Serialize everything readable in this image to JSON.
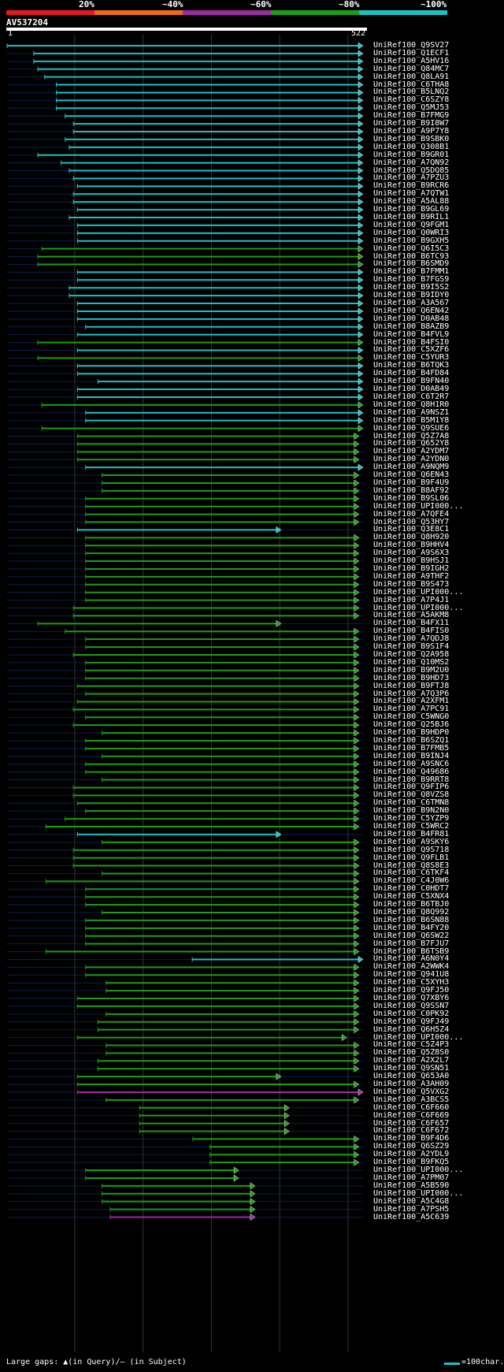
{
  "header": {
    "legend": [
      "20%",
      "~40%",
      "~60%",
      "~80%",
      "~100%"
    ],
    "band_colors": [
      "#e41a1c",
      "#ed6b12",
      "#9c2aa0",
      "#1b9e14",
      "#1ac2c2"
    ]
  },
  "query": {
    "name": "AV537204",
    "start": "1",
    "end": "522"
  },
  "footer": {
    "gaps": "Large gaps: ▲(in Query)/– (in Subject)",
    "scale": "=100char."
  },
  "chart_data": {
    "type": "alignment-overview",
    "query_length": 522,
    "hits": [
      {
        "name": "UniRef100_Q9SV27",
        "s": 1,
        "e": 522,
        "c": "c"
      },
      {
        "name": "UniRef100_Q1ECF1",
        "s": 40,
        "e": 522,
        "c": "c"
      },
      {
        "name": "UniRef100_A5HV16",
        "s": 40,
        "e": 522,
        "c": "c"
      },
      {
        "name": "UniRef100_Q84MC7",
        "s": 46,
        "e": 522,
        "c": "c"
      },
      {
        "name": "UniRef100_Q8LA91",
        "s": 56,
        "e": 522,
        "c": "c"
      },
      {
        "name": "UniRef100_C6THA8",
        "s": 73,
        "e": 522,
        "c": "c"
      },
      {
        "name": "UniRef100_B5LNQ2",
        "s": 73,
        "e": 522,
        "c": "c"
      },
      {
        "name": "UniRef100_C6SZY8",
        "s": 73,
        "e": 522,
        "c": "c"
      },
      {
        "name": "UniRef100_Q5MJ53",
        "s": 73,
        "e": 522,
        "c": "c"
      },
      {
        "name": "UniRef100_B7FMG9",
        "s": 86,
        "e": 522,
        "c": "c"
      },
      {
        "name": "UniRef100_B9I8W7",
        "s": 98,
        "e": 522,
        "c": "c"
      },
      {
        "name": "UniRef100_A9P7Y8",
        "s": 98,
        "e": 522,
        "c": "c"
      },
      {
        "name": "UniRef100_B9SBK0",
        "s": 86,
        "e": 522,
        "c": "c"
      },
      {
        "name": "UniRef100_Q308B1",
        "s": 92,
        "e": 522,
        "c": "c"
      },
      {
        "name": "UniRef100_B9GR01",
        "s": 46,
        "e": 522,
        "c": "c"
      },
      {
        "name": "UniRef100_A7QN92",
        "s": 80,
        "e": 522,
        "c": "c"
      },
      {
        "name": "UniRef100_Q5DQ85",
        "s": 92,
        "e": 522,
        "c": "c"
      },
      {
        "name": "UniRef100_A7PZU3",
        "s": 98,
        "e": 522,
        "c": "c"
      },
      {
        "name": "UniRef100_B9RCR6",
        "s": 104,
        "e": 522,
        "c": "c"
      },
      {
        "name": "UniRef100_A7QTW1",
        "s": 98,
        "e": 522,
        "c": "c"
      },
      {
        "name": "UniRef100_A5AL88",
        "s": 98,
        "e": 522,
        "c": "c"
      },
      {
        "name": "UniRef100_B9GL69",
        "s": 104,
        "e": 522,
        "c": "c"
      },
      {
        "name": "UniRef100_B9RIL1",
        "s": 92,
        "e": 522,
        "c": "c"
      },
      {
        "name": "UniRef100_Q9FGM1",
        "s": 104,
        "e": 522,
        "c": "c"
      },
      {
        "name": "UniRef100_Q0WRI3",
        "s": 104,
        "e": 522,
        "c": "c"
      },
      {
        "name": "UniRef100_B9GXH5",
        "s": 104,
        "e": 522,
        "c": "c"
      },
      {
        "name": "UniRef100_Q6I5C3",
        "s": 52,
        "e": 522,
        "c": "g"
      },
      {
        "name": "UniRef100_B6TC93",
        "s": 46,
        "e": 522,
        "c": "g"
      },
      {
        "name": "UniRef100_B6SMD9",
        "s": 46,
        "e": 522,
        "c": "g"
      },
      {
        "name": "UniRef100_B7FMM1",
        "s": 104,
        "e": 522,
        "c": "c"
      },
      {
        "name": "UniRef100_B7FGS9",
        "s": 104,
        "e": 522,
        "c": "c"
      },
      {
        "name": "UniRef100_B9I5S2",
        "s": 92,
        "e": 522,
        "c": "c"
      },
      {
        "name": "UniRef100_B9IDY0",
        "s": 92,
        "e": 522,
        "c": "c"
      },
      {
        "name": "UniRef100_A3A567",
        "s": 104,
        "e": 522,
        "c": "c"
      },
      {
        "name": "UniRef100_Q6EN42",
        "s": 104,
        "e": 522,
        "c": "c"
      },
      {
        "name": "UniRef100_D0AB48",
        "s": 104,
        "e": 522,
        "c": "c"
      },
      {
        "name": "UniRef100_B8AZB9",
        "s": 116,
        "e": 522,
        "c": "c"
      },
      {
        "name": "UniRef100_B4FVL9",
        "s": 104,
        "e": 522,
        "c": "c"
      },
      {
        "name": "UniRef100_B4FSI0",
        "s": 46,
        "e": 522,
        "c": "g"
      },
      {
        "name": "UniRef100_C5XZF6",
        "s": 104,
        "e": 522,
        "c": "c"
      },
      {
        "name": "UniRef100_C5YUR3",
        "s": 46,
        "e": 522,
        "c": "g"
      },
      {
        "name": "UniRef100_B6TQK3",
        "s": 104,
        "e": 522,
        "c": "c"
      },
      {
        "name": "UniRef100_B4FD84",
        "s": 104,
        "e": 522,
        "c": "c"
      },
      {
        "name": "UniRef100_B9FN40",
        "s": 134,
        "e": 522,
        "c": "c"
      },
      {
        "name": "UniRef100_D0AB49",
        "s": 104,
        "e": 522,
        "c": "c"
      },
      {
        "name": "UniRef100_C6T2R7",
        "s": 104,
        "e": 522,
        "c": "c"
      },
      {
        "name": "UniRef100_Q8H1R0",
        "s": 52,
        "e": 522,
        "c": "g"
      },
      {
        "name": "UniRef100_A9NSZ1",
        "s": 116,
        "e": 522,
        "c": "c"
      },
      {
        "name": "UniRef100_B5M1Y8",
        "s": 116,
        "e": 522,
        "c": "c"
      },
      {
        "name": "UniRef100_Q9SUE6",
        "s": 52,
        "e": 522,
        "c": "g"
      },
      {
        "name": "UniRef100_Q5Z7A8",
        "s": 104,
        "e": 516,
        "c": "g"
      },
      {
        "name": "UniRef100_Q652Y8",
        "s": 104,
        "e": 516,
        "c": "g"
      },
      {
        "name": "UniRef100_A2YDM7",
        "s": 104,
        "e": 516,
        "c": "g"
      },
      {
        "name": "UniRef100_A2YDN0",
        "s": 104,
        "e": 516,
        "c": "g"
      },
      {
        "name": "UniRef100_A9NQM9",
        "s": 116,
        "e": 522,
        "c": "c"
      },
      {
        "name": "UniRef100_Q6EN43",
        "s": 140,
        "e": 516,
        "c": "g"
      },
      {
        "name": "UniRef100_B9F4U9",
        "s": 140,
        "e": 516,
        "c": "g"
      },
      {
        "name": "UniRef100_B8AF92",
        "s": 140,
        "e": 516,
        "c": "g"
      },
      {
        "name": "UniRef100_B9SL06",
        "s": 116,
        "e": 516,
        "c": "g"
      },
      {
        "name": "UniRef100_UPI000...",
        "s": 116,
        "e": 516,
        "c": "g"
      },
      {
        "name": "UniRef100_A7QFE4",
        "s": 116,
        "e": 516,
        "c": "g"
      },
      {
        "name": "UniRef100_Q53HY7",
        "s": 116,
        "e": 516,
        "c": "g"
      },
      {
        "name": "UniRef100_Q3E8C1",
        "s": 104,
        "e": 402,
        "c": "c"
      },
      {
        "name": "UniRef100_Q8H920",
        "s": 116,
        "e": 516,
        "c": "g"
      },
      {
        "name": "UniRef100_B9HHV4",
        "s": 116,
        "e": 516,
        "c": "g"
      },
      {
        "name": "UniRef100_A9S6X3",
        "s": 116,
        "e": 516,
        "c": "g"
      },
      {
        "name": "UniRef100_B9HSJ1",
        "s": 116,
        "e": 516,
        "c": "g"
      },
      {
        "name": "UniRef100_B9IGH2",
        "s": 116,
        "e": 516,
        "c": "g"
      },
      {
        "name": "UniRef100_A9THF2",
        "s": 116,
        "e": 516,
        "c": "g"
      },
      {
        "name": "UniRef100_B9S473",
        "s": 116,
        "e": 516,
        "c": "g"
      },
      {
        "name": "UniRef100_UPI000...",
        "s": 116,
        "e": 516,
        "c": "g"
      },
      {
        "name": "UniRef100_A7P4J1",
        "s": 116,
        "e": 516,
        "c": "g"
      },
      {
        "name": "UniRef100_UPI000...",
        "s": 98,
        "e": 516,
        "c": "g"
      },
      {
        "name": "UniRef100_A5AKM8",
        "s": 98,
        "e": 516,
        "c": "g"
      },
      {
        "name": "UniRef100_B4FX11",
        "s": 46,
        "e": 402,
        "c": "g"
      },
      {
        "name": "UniRef100_B4FIS0",
        "s": 86,
        "e": 516,
        "c": "g"
      },
      {
        "name": "UniRef100_A7QDJ8",
        "s": 116,
        "e": 516,
        "c": "g"
      },
      {
        "name": "UniRef100_B9S1F4",
        "s": 116,
        "e": 516,
        "c": "g"
      },
      {
        "name": "UniRef100_Q2A958",
        "s": 98,
        "e": 516,
        "c": "g"
      },
      {
        "name": "UniRef100_Q10MS2",
        "s": 116,
        "e": 516,
        "c": "g"
      },
      {
        "name": "UniRef100_B9M2U0",
        "s": 116,
        "e": 516,
        "c": "g"
      },
      {
        "name": "UniRef100_B9HD73",
        "s": 116,
        "e": 516,
        "c": "g"
      },
      {
        "name": "UniRef100_B9FTJ8",
        "s": 104,
        "e": 516,
        "c": "g"
      },
      {
        "name": "UniRef100_A7Q3P6",
        "s": 116,
        "e": 516,
        "c": "g"
      },
      {
        "name": "UniRef100_A2XFM1",
        "s": 104,
        "e": 516,
        "c": "g"
      },
      {
        "name": "UniRef100_A7PC91",
        "s": 98,
        "e": 516,
        "c": "g"
      },
      {
        "name": "UniRef100_C5WNG0",
        "s": 116,
        "e": 516,
        "c": "g"
      },
      {
        "name": "UniRef100_Q25BJ6",
        "s": 98,
        "e": 516,
        "c": "g"
      },
      {
        "name": "UniRef100_B9HDP0",
        "s": 140,
        "e": 516,
        "c": "g"
      },
      {
        "name": "UniRef100_B6SZQ1",
        "s": 116,
        "e": 516,
        "c": "g"
      },
      {
        "name": "UniRef100_B7FMB5",
        "s": 116,
        "e": 516,
        "c": "g"
      },
      {
        "name": "UniRef100_B9INJ4",
        "s": 140,
        "e": 516,
        "c": "g"
      },
      {
        "name": "UniRef100_A9SNC6",
        "s": 116,
        "e": 516,
        "c": "g"
      },
      {
        "name": "UniRef100_Q49686",
        "s": 116,
        "e": 516,
        "c": "g"
      },
      {
        "name": "UniRef100_B9RRT8",
        "s": 140,
        "e": 516,
        "c": "g"
      },
      {
        "name": "UniRef100_Q9FIP6",
        "s": 98,
        "e": 516,
        "c": "g"
      },
      {
        "name": "UniRef100_Q8VZS8",
        "s": 98,
        "e": 516,
        "c": "g"
      },
      {
        "name": "UniRef100_C6TMN8",
        "s": 104,
        "e": 516,
        "c": "g"
      },
      {
        "name": "UniRef100_B9N2N0",
        "s": 116,
        "e": 516,
        "c": "g"
      },
      {
        "name": "UniRef100_C5YZP9",
        "s": 86,
        "e": 516,
        "c": "g"
      },
      {
        "name": "UniRef100_C5WRC2",
        "s": 58,
        "e": 516,
        "c": "g"
      },
      {
        "name": "UniRef100_B4FR81",
        "s": 104,
        "e": 402,
        "c": "c"
      },
      {
        "name": "UniRef100_A9SKY6",
        "s": 140,
        "e": 516,
        "c": "g"
      },
      {
        "name": "UniRef100_Q9S718",
        "s": 98,
        "e": 516,
        "c": "g"
      },
      {
        "name": "UniRef100_Q9FLB1",
        "s": 98,
        "e": 516,
        "c": "g"
      },
      {
        "name": "UniRef100_Q8S8E3",
        "s": 98,
        "e": 516,
        "c": "g"
      },
      {
        "name": "UniRef100_C6TKF4",
        "s": 140,
        "e": 516,
        "c": "g"
      },
      {
        "name": "UniRef100_C4J0W6",
        "s": 58,
        "e": 516,
        "c": "g"
      },
      {
        "name": "UniRef100_C0HDT7",
        "s": 116,
        "e": 516,
        "c": "g"
      },
      {
        "name": "UniRef100_C5XNX4",
        "s": 116,
        "e": 516,
        "c": "g"
      },
      {
        "name": "UniRef100_B6TBJ0",
        "s": 116,
        "e": 516,
        "c": "g"
      },
      {
        "name": "UniRef100_Q8Q992",
        "s": 140,
        "e": 516,
        "c": "g"
      },
      {
        "name": "UniRef100_B6SN88",
        "s": 116,
        "e": 516,
        "c": "g"
      },
      {
        "name": "UniRef100_B4FY20",
        "s": 116,
        "e": 516,
        "c": "g"
      },
      {
        "name": "UniRef100_Q6SW22",
        "s": 116,
        "e": 516,
        "c": "g"
      },
      {
        "name": "UniRef100_B7FJU7",
        "s": 116,
        "e": 516,
        "c": "g"
      },
      {
        "name": "UniRef100_B6TSB9",
        "s": 58,
        "e": 516,
        "c": "g"
      },
      {
        "name": "UniRef100_A6N0Y4",
        "s": 272,
        "e": 522,
        "c": "c"
      },
      {
        "name": "UniRef100_A2WWK4",
        "s": 116,
        "e": 516,
        "c": "g"
      },
      {
        "name": "UniRef100_Q941U8",
        "s": 116,
        "e": 516,
        "c": "g"
      },
      {
        "name": "UniRef100_C5XYH3",
        "s": 146,
        "e": 516,
        "c": "g"
      },
      {
        "name": "UniRef100_Q9FJ50",
        "s": 146,
        "e": 516,
        "c": "g"
      },
      {
        "name": "UniRef100_Q7XBY6",
        "s": 104,
        "e": 516,
        "c": "g"
      },
      {
        "name": "UniRef100_Q9SSN7",
        "s": 104,
        "e": 516,
        "c": "g"
      },
      {
        "name": "UniRef100_C0PK92",
        "s": 146,
        "e": 516,
        "c": "g"
      },
      {
        "name": "UniRef100_Q9FJ49",
        "s": 134,
        "e": 516,
        "c": "g"
      },
      {
        "name": "UniRef100_Q6H5Z4",
        "s": 134,
        "e": 516,
        "c": "g"
      },
      {
        "name": "UniRef100_UPI000...",
        "s": 104,
        "e": 498,
        "c": "g"
      },
      {
        "name": "UniRef100_C5Z4P3",
        "s": 146,
        "e": 516,
        "c": "g"
      },
      {
        "name": "UniRef100_Q5Z8S0",
        "s": 146,
        "e": 516,
        "c": "g"
      },
      {
        "name": "UniRef100_A2X2L7",
        "s": 134,
        "e": 516,
        "c": "g"
      },
      {
        "name": "UniRef100_Q9SN51",
        "s": 134,
        "e": 516,
        "c": "g"
      },
      {
        "name": "UniRef100_Q653A0",
        "s": 104,
        "e": 402,
        "c": "g"
      },
      {
        "name": "UniRef100_A3AH09",
        "s": 104,
        "e": 516,
        "c": "g"
      },
      {
        "name": "UniRef100_Q5VXG2",
        "s": 104,
        "e": 522,
        "c": "m"
      },
      {
        "name": "UniRef100_A3BCS5",
        "s": 146,
        "e": 516,
        "c": "g"
      },
      {
        "name": "UniRef100_C6F660",
        "s": 195,
        "e": 414,
        "c": "g"
      },
      {
        "name": "UniRef100_C6F669",
        "s": 195,
        "e": 414,
        "c": "g"
      },
      {
        "name": "UniRef100_C6F657",
        "s": 195,
        "e": 414,
        "c": "g"
      },
      {
        "name": "UniRef100_C6F672",
        "s": 195,
        "e": 414,
        "c": "g"
      },
      {
        "name": "UniRef100_B9F4D6",
        "s": 273,
        "e": 516,
        "c": "g"
      },
      {
        "name": "UniRef100_Q6SZ29",
        "s": 298,
        "e": 516,
        "c": "g"
      },
      {
        "name": "UniRef100_A2YDL9",
        "s": 298,
        "e": 516,
        "c": "g"
      },
      {
        "name": "UniRef100_B9FKQ5",
        "s": 298,
        "e": 516,
        "c": "g"
      },
      {
        "name": "UniRef100_UPI000...",
        "s": 116,
        "e": 340,
        "c": "g"
      },
      {
        "name": "UniRef100_A7PM07",
        "s": 116,
        "e": 340,
        "c": "g"
      },
      {
        "name": "UniRef100_A5B590",
        "s": 140,
        "e": 364,
        "c": "g"
      },
      {
        "name": "UniRef100_UPI000...",
        "s": 140,
        "e": 364,
        "c": "g"
      },
      {
        "name": "UniRef100_A5C4G8",
        "s": 140,
        "e": 364,
        "c": "g"
      },
      {
        "name": "UniRef100_A7PSH5",
        "s": 152,
        "e": 364,
        "c": "g"
      },
      {
        "name": "UniRef100_A5C639",
        "s": 152,
        "e": 364,
        "c": "m"
      }
    ]
  }
}
